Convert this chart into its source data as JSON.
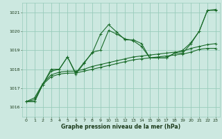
{
  "background_color": "#cce8e0",
  "grid_color": "#99ccbb",
  "line_color": "#1a6b2a",
  "title": "Graphe pression niveau de la mer (hPa)",
  "xlim": [
    -0.5,
    23.5
  ],
  "ylim": [
    1015.5,
    1021.5
  ],
  "yticks": [
    1016,
    1017,
    1018,
    1019,
    1020,
    1021
  ],
  "xticks": [
    0,
    1,
    2,
    3,
    4,
    5,
    6,
    7,
    8,
    9,
    10,
    11,
    12,
    13,
    14,
    15,
    16,
    17,
    18,
    19,
    20,
    21,
    22,
    23
  ],
  "series": [
    {
      "x": [
        0,
        1,
        2,
        3,
        4,
        5,
        6,
        7,
        8,
        9,
        10,
        11,
        12,
        13,
        14,
        15,
        16,
        17,
        18,
        19,
        20,
        21,
        22,
        23
      ],
      "y": [
        1016.3,
        1016.3,
        1017.2,
        1017.9,
        1018.0,
        1018.65,
        1017.8,
        1018.35,
        1018.85,
        1019.85,
        1020.35,
        1019.95,
        1019.55,
        1019.55,
        1019.35,
        1018.6,
        1018.6,
        1018.6,
        1018.85,
        1018.85,
        1019.35,
        1020.0,
        1021.1,
        1021.15
      ]
    },
    {
      "x": [
        0,
        1,
        2,
        3,
        4,
        5,
        6,
        7,
        8,
        9,
        10,
        11,
        12,
        13,
        14,
        15,
        16,
        17,
        18,
        19,
        20,
        21,
        22,
        23
      ],
      "y": [
        1016.3,
        1016.3,
        1017.2,
        1018.0,
        1018.0,
        1018.65,
        1017.75,
        1018.3,
        1018.9,
        1019.0,
        1020.05,
        1019.85,
        1019.6,
        1019.5,
        1019.2,
        1018.6,
        1018.6,
        1018.6,
        1018.85,
        1019.0,
        1019.4,
        1020.0,
        1021.1,
        1021.1
      ]
    },
    {
      "x": [
        0,
        1,
        2,
        3,
        4,
        5,
        6,
        7,
        8,
        9,
        10,
        11,
        12,
        13,
        14,
        15,
        16,
        17,
        18,
        19,
        20,
        21,
        22,
        23
      ],
      "y": [
        1016.3,
        1016.4,
        1017.2,
        1017.6,
        1017.75,
        1017.8,
        1017.8,
        1017.9,
        1018.0,
        1018.1,
        1018.2,
        1018.3,
        1018.4,
        1018.5,
        1018.55,
        1018.6,
        1018.65,
        1018.7,
        1018.75,
        1018.8,
        1018.9,
        1019.05,
        1019.1,
        1019.1
      ]
    },
    {
      "x": [
        0,
        1,
        2,
        3,
        4,
        5,
        6,
        7,
        8,
        9,
        10,
        11,
        12,
        13,
        14,
        15,
        16,
        17,
        18,
        19,
        20,
        21,
        22,
        23
      ],
      "y": [
        1016.3,
        1016.5,
        1017.25,
        1017.7,
        1017.85,
        1017.9,
        1017.9,
        1018.0,
        1018.15,
        1018.25,
        1018.35,
        1018.45,
        1018.55,
        1018.65,
        1018.7,
        1018.75,
        1018.8,
        1018.85,
        1018.9,
        1018.95,
        1019.1,
        1019.2,
        1019.3,
        1019.35
      ]
    }
  ]
}
